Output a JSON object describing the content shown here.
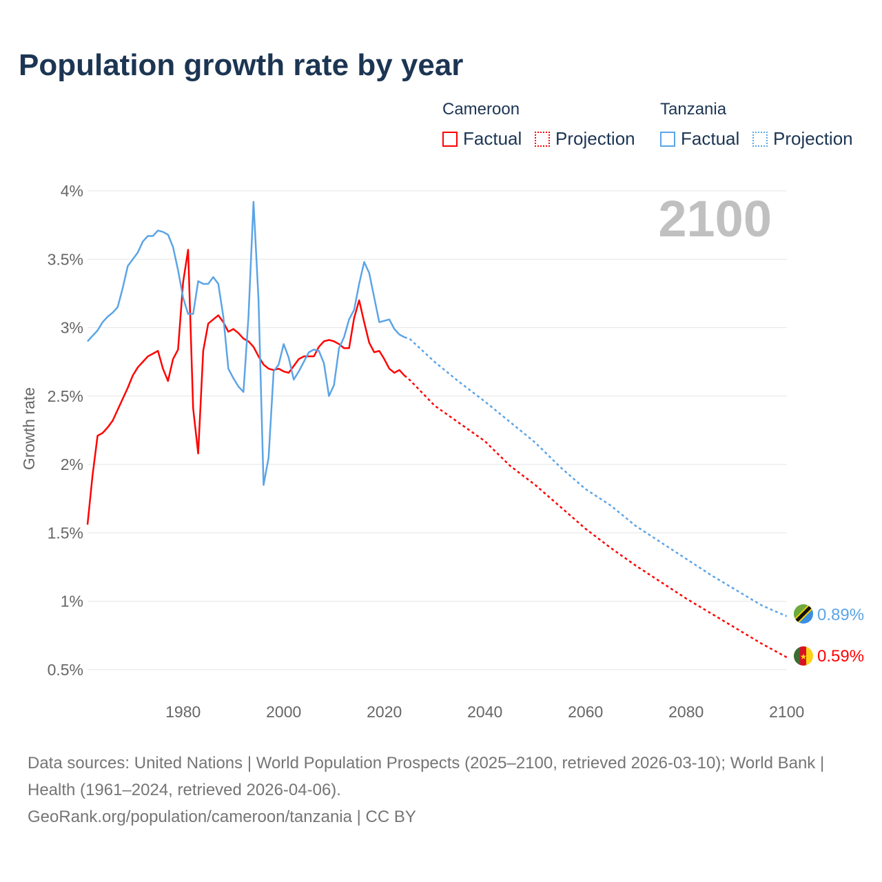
{
  "title": "Population growth rate by year",
  "legend": {
    "groups": [
      {
        "country": "Cameroon",
        "factual": "Factual",
        "projection": "Projection",
        "color": "#ff0000"
      },
      {
        "country": "Tanzania",
        "factual": "Factual",
        "projection": "Projection",
        "color": "#5ba4e6"
      }
    ]
  },
  "footer": {
    "line1": "Data sources: United Nations | World Population Prospects (2025–2100, retrieved 2026-03-10); World Bank | Health (1961–2024, retrieved 2026-04-06).",
    "line2": "GeoRank.org/population/cameroon/tanzania | CC BY"
  },
  "chart_data": {
    "type": "line",
    "title": "Population growth rate by year",
    "xlabel": "",
    "ylabel": "Growth rate",
    "year_label": "2100",
    "xlim": [
      1961,
      2100
    ],
    "ylim": [
      0.35,
      4.05
    ],
    "xticks": [
      1980,
      2000,
      2020,
      2040,
      2060,
      2080,
      2100
    ],
    "yticks": [
      {
        "v": 0.5,
        "l": "0.5%"
      },
      {
        "v": 1,
        "l": "1%"
      },
      {
        "v": 1.5,
        "l": "1.5%"
      },
      {
        "v": 2,
        "l": "2%"
      },
      {
        "v": 2.5,
        "l": "2.5%"
      },
      {
        "v": 3,
        "l": "3%"
      },
      {
        "v": 3.5,
        "l": "3.5%"
      },
      {
        "v": 4,
        "l": "4%"
      }
    ],
    "grid": true,
    "series": [
      {
        "name": "Cameroon",
        "color": "#ff0000",
        "end_label": "0.59%",
        "factual": {
          "start": 1961,
          "values": [
            1.56,
            1.92,
            2.21,
            2.23,
            2.27,
            2.32,
            2.4,
            2.48,
            2.56,
            2.65,
            2.71,
            2.75,
            2.79,
            2.81,
            2.83,
            2.7,
            2.61,
            2.77,
            2.84,
            3.33,
            3.57,
            2.41,
            2.08,
            2.83,
            3.03,
            3.06,
            3.09,
            3.04,
            2.97,
            2.99,
            2.96,
            2.92,
            2.9,
            2.86,
            2.79,
            2.73,
            2.7,
            2.69,
            2.7,
            2.68,
            2.67,
            2.72,
            2.77,
            2.79,
            2.79,
            2.79,
            2.86,
            2.9,
            2.91,
            2.9,
            2.88,
            2.85,
            2.85,
            3.07,
            3.2,
            3.04,
            2.89,
            2.82,
            2.83,
            2.77,
            2.7,
            2.67,
            2.69,
            2.65
          ]
        },
        "projection": {
          "x": [
            2024,
            2025,
            2030,
            2035,
            2040,
            2045,
            2050,
            2055,
            2060,
            2065,
            2070,
            2075,
            2080,
            2085,
            2090,
            2095,
            2100
          ],
          "values": [
            2.65,
            2.62,
            2.43,
            2.3,
            2.17,
            1.99,
            1.85,
            1.69,
            1.53,
            1.39,
            1.26,
            1.14,
            1.02,
            0.91,
            0.8,
            0.69,
            0.59
          ]
        }
      },
      {
        "name": "Tanzania",
        "color": "#5ba4e6",
        "end_label": "0.89%",
        "factual": {
          "start": 1961,
          "values": [
            2.9,
            2.94,
            2.98,
            3.04,
            3.08,
            3.11,
            3.15,
            3.29,
            3.45,
            3.5,
            3.55,
            3.63,
            3.67,
            3.67,
            3.71,
            3.7,
            3.68,
            3.59,
            3.42,
            3.22,
            3.1,
            3.1,
            3.34,
            3.32,
            3.32,
            3.37,
            3.32,
            3.08,
            2.7,
            2.63,
            2.57,
            2.53,
            3.08,
            3.92,
            3.2,
            1.85,
            2.05,
            2.68,
            2.73,
            2.88,
            2.78,
            2.62,
            2.68,
            2.75,
            2.82,
            2.84,
            2.83,
            2.74,
            2.5,
            2.58,
            2.85,
            2.93,
            3.06,
            3.13,
            3.32,
            3.48,
            3.4,
            3.22,
            3.04,
            3.05,
            3.06,
            2.99,
            2.95,
            2.93
          ]
        },
        "projection": {
          "x": [
            2024,
            2025,
            2030,
            2035,
            2040,
            2045,
            2050,
            2055,
            2060,
            2065,
            2070,
            2075,
            2080,
            2085,
            2090,
            2095,
            2100
          ],
          "values": [
            2.93,
            2.92,
            2.75,
            2.6,
            2.46,
            2.31,
            2.16,
            1.98,
            1.82,
            1.7,
            1.55,
            1.43,
            1.31,
            1.19,
            1.08,
            0.97,
            0.89
          ]
        }
      }
    ]
  }
}
